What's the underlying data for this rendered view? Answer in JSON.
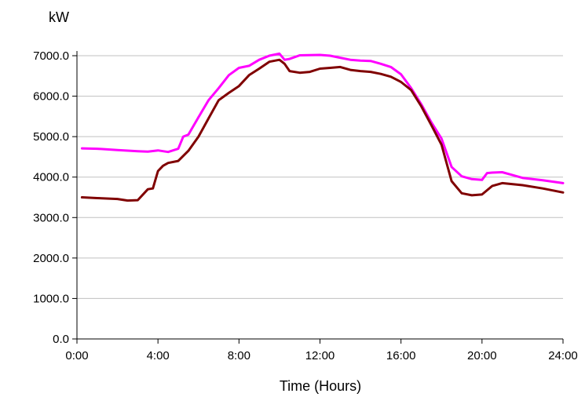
{
  "chart_data": {
    "type": "line",
    "title": "",
    "xlabel": "Time (Hours)",
    "ylabel": "kW",
    "xlim": [
      0,
      24
    ],
    "ylim": [
      0,
      7000
    ],
    "grid": true,
    "legend": "none",
    "x_ticks": [
      0,
      4,
      8,
      12,
      16,
      20,
      24
    ],
    "x_tick_labels": [
      "0:00",
      "4:00",
      "8:00",
      "12:00",
      "16:00",
      "20:00",
      "24:00"
    ],
    "y_ticks": [
      0,
      1000,
      2000,
      3000,
      4000,
      5000,
      6000,
      7000
    ],
    "y_tick_labels": [
      "0.0",
      "1000.0",
      "2000.0",
      "3000.0",
      "4000.0",
      "5000.0",
      "6000.0",
      "7000.0"
    ],
    "series": [
      {
        "color": "#ff00ff",
        "x": [
          0.25,
          1,
          2,
          3,
          3.5,
          4,
          4.5,
          5,
          5.25,
          5.5,
          6,
          6.5,
          7,
          7.5,
          8,
          8.5,
          9,
          9.5,
          10,
          10.25,
          10.5,
          11,
          12,
          12.5,
          13,
          13.5,
          14,
          14.5,
          15,
          15.5,
          16,
          16.5,
          17,
          17.5,
          18,
          18.5,
          19,
          19.5,
          20,
          20.25,
          20.5,
          21,
          21.5,
          22,
          23,
          24
        ],
        "y": [
          4710,
          4700,
          4670,
          4640,
          4630,
          4660,
          4620,
          4700,
          5000,
          5050,
          5480,
          5900,
          6200,
          6520,
          6700,
          6750,
          6900,
          7000,
          7050,
          6900,
          6920,
          7010,
          7020,
          7000,
          6950,
          6900,
          6880,
          6870,
          6800,
          6720,
          6540,
          6200,
          5800,
          5350,
          4950,
          4250,
          4020,
          3950,
          3930,
          4100,
          4110,
          4120,
          4050,
          3980,
          3920,
          3850
        ]
      },
      {
        "color": "#800000",
        "x": [
          0.25,
          1,
          2,
          2.5,
          3,
          3.5,
          3.75,
          4,
          4.25,
          4.5,
          5,
          5.5,
          6,
          6.5,
          7,
          7.5,
          8,
          8.5,
          9,
          9.5,
          10,
          10.25,
          10.5,
          11,
          11.5,
          12,
          12.5,
          13,
          13.5,
          14,
          14.5,
          15,
          15.5,
          16,
          16.5,
          17,
          17.5,
          18,
          18.5,
          19,
          19.5,
          20,
          20.5,
          21,
          22,
          23,
          24
        ],
        "y": [
          3500,
          3480,
          3460,
          3420,
          3430,
          3700,
          3720,
          4150,
          4280,
          4350,
          4400,
          4650,
          5000,
          5450,
          5900,
          6080,
          6250,
          6520,
          6680,
          6850,
          6900,
          6800,
          6620,
          6580,
          6600,
          6680,
          6700,
          6720,
          6650,
          6620,
          6600,
          6550,
          6480,
          6350,
          6150,
          5750,
          5280,
          4800,
          3900,
          3600,
          3550,
          3570,
          3780,
          3850,
          3800,
          3720,
          3620
        ]
      }
    ]
  }
}
